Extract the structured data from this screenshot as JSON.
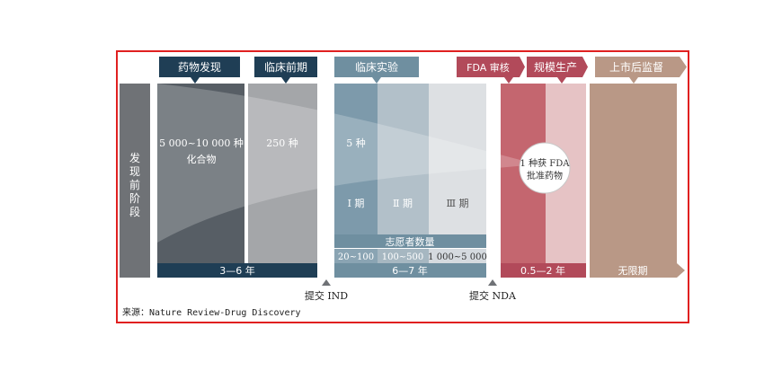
{
  "pre_stage": {
    "label": "发现前阶段"
  },
  "headers": {
    "discovery": "药物发现",
    "preclinical": "临床前期",
    "clinical": "临床实验",
    "fda_review": "FDA 审核",
    "manufacturing": "规模生产",
    "post_market": "上市后监督"
  },
  "counts": {
    "discovery_line1": "5 000~10 000 种",
    "discovery_line2": "化合物",
    "preclinical": "250 种",
    "clinical": "5 种",
    "approved_line1": "1 种获 FDA",
    "approved_line2": "批准药物"
  },
  "phases": {
    "p1": "Ⅰ 期",
    "p2": "Ⅱ 期",
    "p3": "Ⅲ 期"
  },
  "volunteers": {
    "title": "志愿者数量",
    "p1": "20~100",
    "p2": "100~500",
    "p3": "1 000~5 000"
  },
  "durations": {
    "discovery_preclinical": "3—6 年",
    "clinical": "6—7 年",
    "fda_manufacturing": "0.5—2 年",
    "post_market": "无限期"
  },
  "milestones": {
    "ind": "提交 IND",
    "nda": "提交 NDA"
  },
  "source": "来源：Nature Review-Drug Discovery",
  "colors": {
    "border": "#e02020",
    "dark_navy": "#1f3e55",
    "teal_header": "#6f8fa0",
    "rose_header": "#b24a5a",
    "brown": "#b99886",
    "gray_col": "#6f7276"
  }
}
